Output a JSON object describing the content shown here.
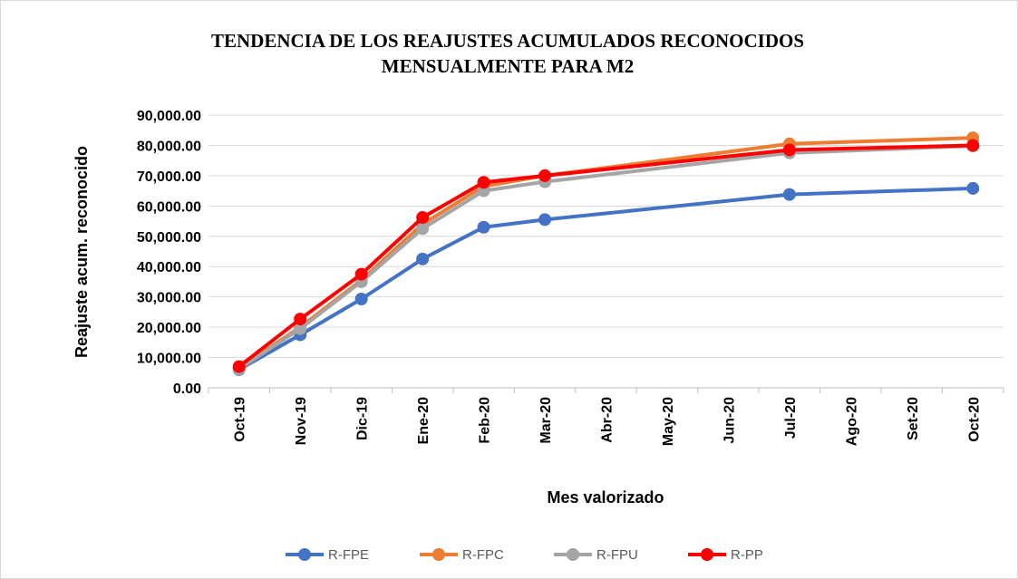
{
  "chart_data": {
    "type": "line",
    "title": [
      "TENDENCIA DE LOS REAJUSTES ACUMULADOS RECONOCIDOS",
      "MENSUALMENTE PARA M2"
    ],
    "xlabel": "Mes valorizado",
    "ylabel": "Reajuste acum. reconocido",
    "xticks": [
      "Oct-19",
      "Nov-19",
      "Dic-19",
      "Ene-20",
      "Feb-20",
      "Mar-20",
      "Abr-20",
      "May-20",
      "Jun-20",
      "Jul-20",
      "Ago-20",
      "Set-20",
      "Oct-20"
    ],
    "x": [
      "Oct-19",
      "Nov-19",
      "Dic-19",
      "Ene-20",
      "Feb-20",
      "Mar-20",
      "Jul-20",
      "Oct-20"
    ],
    "series": [
      {
        "name": "R-FPE",
        "color": "#4472c4",
        "values": [
          6000,
          17500,
          29300,
          42500,
          53000,
          55500,
          63800,
          65800
        ]
      },
      {
        "name": "R-FPC",
        "color": "#ed7d31",
        "values": [
          6500,
          20000,
          35500,
          54000,
          66500,
          70000,
          80500,
          82500
        ]
      },
      {
        "name": "R-FPU",
        "color": "#a5a5a5",
        "values": [
          6200,
          19500,
          35000,
          52500,
          65000,
          68000,
          77500,
          79800
        ]
      },
      {
        "name": "R-PP",
        "color": "#ff0000",
        "values": [
          7000,
          22700,
          37500,
          56200,
          67800,
          70000,
          78500,
          80000
        ]
      }
    ],
    "ylim": [
      0,
      90000
    ],
    "yticks": [
      {
        "value": 0,
        "label": "0.00"
      },
      {
        "value": 10000,
        "label": "10,000.00"
      },
      {
        "value": 20000,
        "label": "20,000.00"
      },
      {
        "value": 30000,
        "label": "30,000.00"
      },
      {
        "value": 40000,
        "label": "40,000.00"
      },
      {
        "value": 50000,
        "label": "50,000.00"
      },
      {
        "value": 60000,
        "label": "60,000.00"
      },
      {
        "value": 70000,
        "label": "70,000.00"
      },
      {
        "value": 80000,
        "label": "80,000.00"
      },
      {
        "value": 90000,
        "label": "90,000.00"
      }
    ],
    "grid": true,
    "legend": "bottom"
  }
}
